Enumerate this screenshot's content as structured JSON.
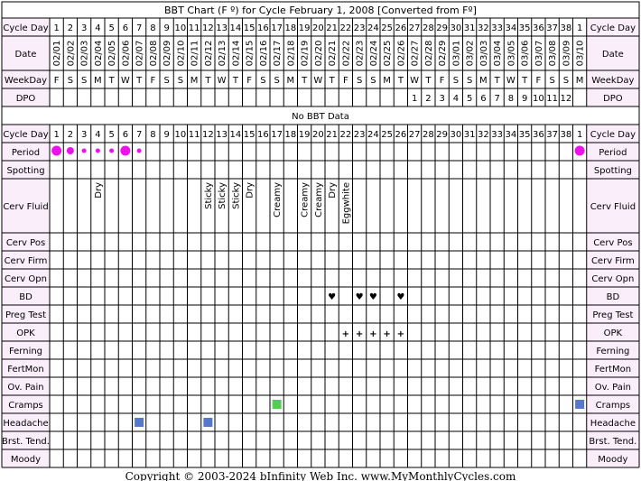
{
  "chart_data": {
    "type": "table",
    "title": "BBT Chart (F º) for Cycle February 1, 2008  [Converted from Fº]",
    "no_data_text": "No BBT Data",
    "footer": "Copyright © 2003-2024 bInfinity Web Inc.     www.MyMonthlyCycles.com",
    "columns": [
      {
        "cd": "1",
        "date": "02/01",
        "wd": "F",
        "dpo": ""
      },
      {
        "cd": "2",
        "date": "02/02",
        "wd": "S",
        "dpo": ""
      },
      {
        "cd": "3",
        "date": "02/03",
        "wd": "S",
        "dpo": ""
      },
      {
        "cd": "4",
        "date": "02/04",
        "wd": "M",
        "dpo": ""
      },
      {
        "cd": "5",
        "date": "02/05",
        "wd": "T",
        "dpo": ""
      },
      {
        "cd": "6",
        "date": "02/06",
        "wd": "W",
        "dpo": ""
      },
      {
        "cd": "7",
        "date": "02/07",
        "wd": "T",
        "dpo": ""
      },
      {
        "cd": "8",
        "date": "02/08",
        "wd": "F",
        "dpo": ""
      },
      {
        "cd": "9",
        "date": "02/09",
        "wd": "S",
        "dpo": ""
      },
      {
        "cd": "10",
        "date": "02/10",
        "wd": "S",
        "dpo": ""
      },
      {
        "cd": "11",
        "date": "02/11",
        "wd": "M",
        "dpo": ""
      },
      {
        "cd": "12",
        "date": "02/12",
        "wd": "T",
        "dpo": ""
      },
      {
        "cd": "13",
        "date": "02/13",
        "wd": "W",
        "dpo": ""
      },
      {
        "cd": "14",
        "date": "02/14",
        "wd": "T",
        "dpo": ""
      },
      {
        "cd": "15",
        "date": "02/15",
        "wd": "F",
        "dpo": ""
      },
      {
        "cd": "16",
        "date": "02/16",
        "wd": "S",
        "dpo": ""
      },
      {
        "cd": "17",
        "date": "02/17",
        "wd": "S",
        "dpo": ""
      },
      {
        "cd": "18",
        "date": "02/18",
        "wd": "M",
        "dpo": ""
      },
      {
        "cd": "19",
        "date": "02/19",
        "wd": "T",
        "dpo": ""
      },
      {
        "cd": "20",
        "date": "02/20",
        "wd": "W",
        "dpo": ""
      },
      {
        "cd": "21",
        "date": "02/21",
        "wd": "T",
        "dpo": ""
      },
      {
        "cd": "22",
        "date": "02/22",
        "wd": "F",
        "dpo": ""
      },
      {
        "cd": "23",
        "date": "02/23",
        "wd": "S",
        "dpo": ""
      },
      {
        "cd": "24",
        "date": "02/24",
        "wd": "S",
        "dpo": ""
      },
      {
        "cd": "25",
        "date": "02/25",
        "wd": "M",
        "dpo": ""
      },
      {
        "cd": "26",
        "date": "02/26",
        "wd": "T",
        "dpo": ""
      },
      {
        "cd": "27",
        "date": "02/27",
        "wd": "W",
        "dpo": "1"
      },
      {
        "cd": "28",
        "date": "02/28",
        "wd": "T",
        "dpo": "2"
      },
      {
        "cd": "29",
        "date": "02/29",
        "wd": "F",
        "dpo": "3"
      },
      {
        "cd": "30",
        "date": "03/01",
        "wd": "S",
        "dpo": "4"
      },
      {
        "cd": "31",
        "date": "03/02",
        "wd": "S",
        "dpo": "5"
      },
      {
        "cd": "32",
        "date": "03/03",
        "wd": "M",
        "dpo": "6"
      },
      {
        "cd": "33",
        "date": "03/04",
        "wd": "T",
        "dpo": "7"
      },
      {
        "cd": "34",
        "date": "03/05",
        "wd": "W",
        "dpo": "8"
      },
      {
        "cd": "35",
        "date": "03/06",
        "wd": "T",
        "dpo": "9"
      },
      {
        "cd": "36",
        "date": "03/07",
        "wd": "F",
        "dpo": "10"
      },
      {
        "cd": "37",
        "date": "03/08",
        "wd": "S",
        "dpo": "11"
      },
      {
        "cd": "38",
        "date": "03/09",
        "wd": "S",
        "dpo": "12"
      },
      {
        "cd": "1",
        "date": "03/10",
        "wd": "M",
        "dpo": ""
      }
    ],
    "header_rows": [
      {
        "label": "Cycle Day",
        "field": "cd",
        "type": "text"
      },
      {
        "label": "Date",
        "field": "date",
        "type": "vertical"
      },
      {
        "label": "WeekDay",
        "field": "wd",
        "type": "text"
      },
      {
        "label": "DPO",
        "field": "dpo",
        "type": "text"
      }
    ],
    "body_rows": [
      {
        "label": "Cycle Day",
        "type": "cycleday"
      },
      {
        "label": "Period",
        "type": "period",
        "marks": [
          {
            "col": 1,
            "size": "large"
          },
          {
            "col": 2,
            "size": "medium"
          },
          {
            "col": 3,
            "size": "small"
          },
          {
            "col": 4,
            "size": "small"
          },
          {
            "col": 5,
            "size": "small"
          },
          {
            "col": 6,
            "size": "large"
          },
          {
            "col": 7,
            "size": "small"
          },
          {
            "col": 39,
            "size": "large"
          }
        ]
      },
      {
        "label": "Spotting",
        "type": "plain"
      },
      {
        "label": "Cerv Fluid",
        "type": "vtext",
        "tall": true,
        "entries": [
          {
            "col": 4,
            "text": "Dry"
          },
          {
            "col": 12,
            "text": "Sticky"
          },
          {
            "col": 13,
            "text": "Sticky"
          },
          {
            "col": 14,
            "text": "Sticky"
          },
          {
            "col": 15,
            "text": "Dry"
          },
          {
            "col": 17,
            "text": "Creamy"
          },
          {
            "col": 19,
            "text": "Creamy"
          },
          {
            "col": 20,
            "text": "Creamy"
          },
          {
            "col": 21,
            "text": "Dry"
          },
          {
            "col": 22,
            "text": "Eggwhite"
          }
        ]
      },
      {
        "label": "Cerv Pos",
        "type": "plain"
      },
      {
        "label": "Cerv Firm",
        "type": "plain"
      },
      {
        "label": "Cerv Opn",
        "type": "plain"
      },
      {
        "label": "BD",
        "type": "symbol",
        "symbol": "♥",
        "color": "#cc3366",
        "cols": [
          21,
          23,
          24,
          26
        ]
      },
      {
        "label": "Preg Test",
        "type": "plain"
      },
      {
        "label": "OPK",
        "type": "symbol",
        "symbol": "+",
        "color": "#6a4aa8",
        "cols": [
          22,
          23,
          24,
          25,
          26
        ]
      },
      {
        "label": "Ferning",
        "type": "plain"
      },
      {
        "label": "FertMon",
        "type": "plain"
      },
      {
        "label": "Ov. Pain",
        "type": "plain"
      },
      {
        "label": "Cramps",
        "type": "square",
        "marks": [
          {
            "col": 17,
            "color": "#55cc55"
          },
          {
            "col": 39,
            "color": "#5577cc"
          }
        ]
      },
      {
        "label": "Headache",
        "type": "square",
        "marks": [
          {
            "col": 7,
            "color": "#5577cc"
          },
          {
            "col": 12,
            "color": "#5577cc"
          }
        ]
      },
      {
        "label": "Brst. Tend.",
        "type": "plain"
      },
      {
        "label": "Moody",
        "type": "plain"
      }
    ],
    "colors": {
      "label_bg": "#fbeefb",
      "border": "#000000",
      "period": "#ee11ee",
      "background": "#ffffff"
    }
  }
}
